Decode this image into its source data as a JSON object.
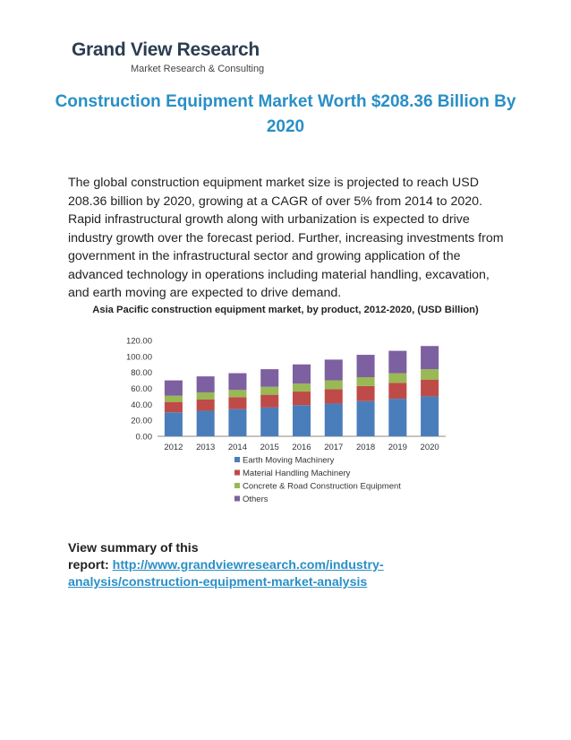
{
  "logo": {
    "name": "Grand View Research",
    "tagline": "Market Research & Consulting"
  },
  "headline": "Construction Equipment Market Worth $208.36 Billion By 2020",
  "body": "The global construction equipment market size is projected to reach USD 208.36 billion by 2020, growing at a CAGR of over 5% from 2014 to 2020. Rapid infrastructural growth along with urbanization is expected to drive industry growth over the forecast period. Further, increasing investments from government in the infrastructural sector and growing application of the advanced technology in operations including material handling, excavation, and earth moving are expected to drive demand.",
  "chart_caption": "Asia Pacific construction equipment market, by product, 2012-2020, (USD Billion)",
  "summary": {
    "label_line1": "View summary of this",
    "label_line2": "report: ",
    "link_line1": "http://www.grandviewresearch.com/industry-",
    "link_line2": "analysis/construction-equipment-market-analysis"
  },
  "chart_data": {
    "type": "bar",
    "stacked": true,
    "categories": [
      "2012",
      "2013",
      "2014",
      "2015",
      "2016",
      "2017",
      "2018",
      "2019",
      "2020"
    ],
    "ylim": [
      0,
      120
    ],
    "yticks": [
      "0.00",
      "20.00",
      "40.00",
      "60.00",
      "80.00",
      "100.00",
      "120.00"
    ],
    "legend_position": "bottom",
    "series": [
      {
        "name": "Earth Moving Machinery",
        "color": "#4a7ebb",
        "values": [
          30,
          32,
          34,
          36,
          39,
          41,
          44,
          47,
          50
        ]
      },
      {
        "name": "Material Handling Machinery",
        "color": "#be4b48",
        "values": [
          13,
          14,
          15,
          16,
          17,
          18,
          19,
          20,
          21
        ]
      },
      {
        "name": "Concrete & Road Construction Equipment",
        "color": "#98b954",
        "values": [
          8,
          9,
          9,
          10,
          10,
          11,
          11,
          12,
          13
        ]
      },
      {
        "name": "Others",
        "color": "#7d60a0",
        "values": [
          19,
          20,
          21,
          22,
          24,
          26,
          28,
          28,
          29
        ]
      }
    ]
  }
}
